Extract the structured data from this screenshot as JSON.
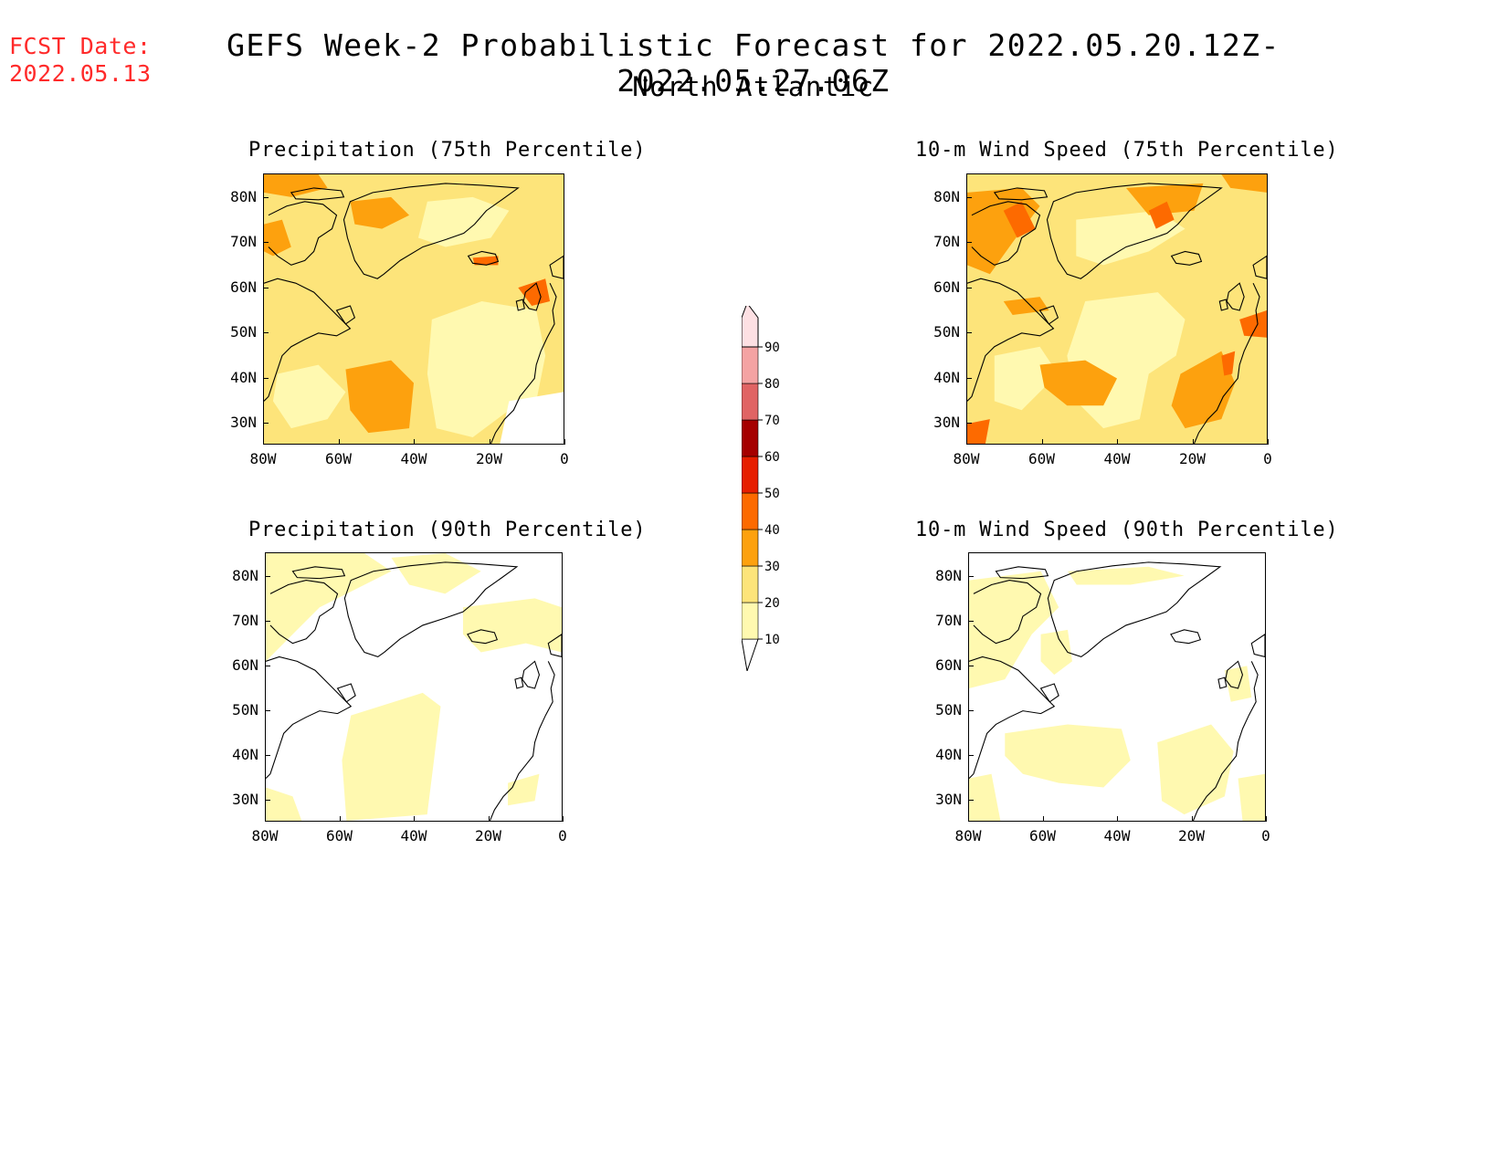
{
  "header": {
    "fcst_date_label": "FCST Date:",
    "fcst_date_value": "2022.05.13",
    "title": "GEFS Week-2 Probabilistic Forecast for 2022.05.20.12Z-2022.05.27.06Z",
    "region": "North Atlantic"
  },
  "panels": [
    {
      "id": "precip75",
      "title": "Precipitation (75th Percentile)"
    },
    {
      "id": "wind75",
      "title": "10-m Wind Speed (75th Percentile)"
    },
    {
      "id": "precip90",
      "title": "Precipitation (90th Percentile)"
    },
    {
      "id": "wind90",
      "title": "10-m Wind Speed (90th Percentile)"
    }
  ],
  "axes": {
    "lat_labels": [
      "80N",
      "70N",
      "60N",
      "50N",
      "40N",
      "30N"
    ],
    "lon_labels": [
      "80W",
      "60W",
      "40W",
      "20W",
      "0"
    ]
  },
  "colorbar": {
    "levels": [
      "10",
      "20",
      "30",
      "40",
      "50",
      "60",
      "70",
      "80",
      "90"
    ],
    "colors": [
      "#fff9b0",
      "#fde47a",
      "#fda10e",
      "#fd6a00",
      "#e61e00",
      "#a50000",
      "#e06464",
      "#f4a3a3",
      "#fde0e3"
    ]
  }
}
